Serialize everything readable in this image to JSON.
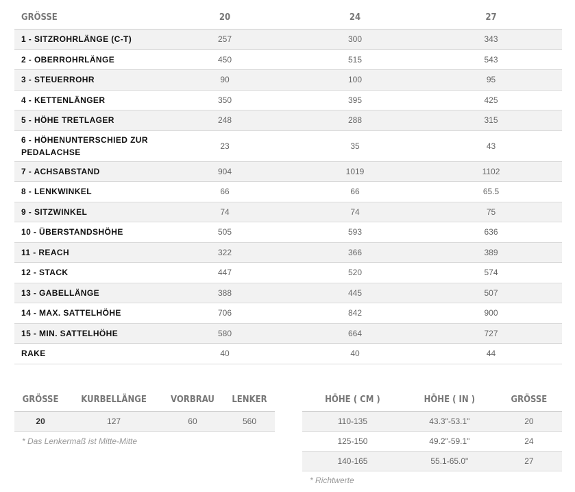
{
  "geometry": {
    "headers": [
      "GRÖSSE",
      "20",
      "24",
      "27"
    ],
    "rows": [
      {
        "label": "1 - SITZROHRLÄNGE (C-T)",
        "v20": "257",
        "v24": "300",
        "v27": "343"
      },
      {
        "label": "2 - OBERROHRLÄNGE",
        "v20": "450",
        "v24": "515",
        "v27": "543"
      },
      {
        "label": "3 - STEUERROHR",
        "v20": "90",
        "v24": "100",
        "v27": "95"
      },
      {
        "label": "4 - KETTENLÄNGER",
        "v20": "350",
        "v24": "395",
        "v27": "425"
      },
      {
        "label": "5 - HÖHE TRETLAGER",
        "v20": "248",
        "v24": "288",
        "v27": "315"
      },
      {
        "label": "6 - HÖHENUNTERSCHIED ZUR PEDALACHSE",
        "v20": "23",
        "v24": "35",
        "v27": "43"
      },
      {
        "label": "7 - ACHSABSTAND",
        "v20": "904",
        "v24": "1019",
        "v27": "1102"
      },
      {
        "label": "8 - LENKWINKEL",
        "v20": "66",
        "v24": "66",
        "v27": "65.5"
      },
      {
        "label": "9 - SITZWINKEL",
        "v20": "74",
        "v24": "74",
        "v27": "75"
      },
      {
        "label": "10 - ÜBERSTANDSHÖHE",
        "v20": "505",
        "v24": "593",
        "v27": "636"
      },
      {
        "label": "11 - REACH",
        "v20": "322",
        "v24": "366",
        "v27": "389"
      },
      {
        "label": "12 - STACK",
        "v20": "447",
        "v24": "520",
        "v27": "574"
      },
      {
        "label": "13 - GABELLÄNGE",
        "v20": "388",
        "v24": "445",
        "v27": "507"
      },
      {
        "label": "14 - MAX. SATTELHÖHE",
        "v20": "706",
        "v24": "842",
        "v27": "900"
      },
      {
        "label": "15 - MIN. SATTELHÖHE",
        "v20": "580",
        "v24": "664",
        "v27": "727"
      },
      {
        "label": "RAKE",
        "v20": "40",
        "v24": "40",
        "v27": "44"
      }
    ]
  },
  "crank_table": {
    "headers": [
      "GRÖSSE",
      "KURBELLÄNGE",
      "VORBRAU",
      "LENKER"
    ],
    "rows": [
      {
        "size": "20",
        "crank": "127",
        "stem": "60",
        "bar": "560"
      }
    ],
    "note": "* Das Lenkermaß ist Mitte-Mitte"
  },
  "height_table": {
    "headers": [
      "HÖHE ( CM )",
      "HÖHE ( IN )",
      "GRÖSSE"
    ],
    "rows": [
      {
        "cm": "110-135",
        "in": "43.3\"-53.1\"",
        "size": "20"
      },
      {
        "cm": "125-150",
        "in": "49.2\"-59.1\"",
        "size": "24"
      },
      {
        "cm": "140-165",
        "in": "55.1-65.0\"",
        "size": "27"
      }
    ],
    "note": "* Richtwerte"
  }
}
